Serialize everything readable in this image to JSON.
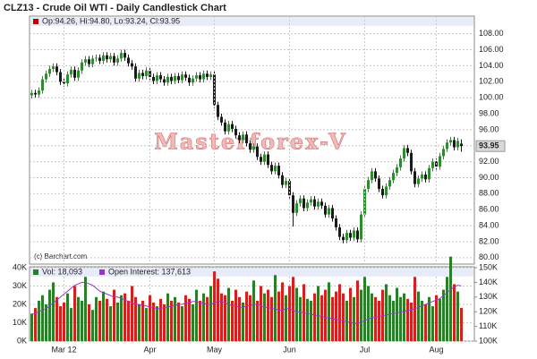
{
  "chart_data": [
    {
      "type": "candlestick",
      "title": "CLZ13 - Crude Oil WTI - Daily Candlestick Chart",
      "legend": "Op:94.26, Hi:94.80, Lo:93.24, Cl:93.95",
      "last_label": "93.95",
      "watermark": "Masterforex-V",
      "credit": "(c) Barchart.com",
      "up_color": "#2e8b2e",
      "down_color": "#1a1a1a",
      "ylim": [
        79.2,
        110.2
      ],
      "yticks": [
        {
          "value": 80,
          "label": "80.00"
        },
        {
          "value": 82,
          "label": "82.00"
        },
        {
          "value": 84,
          "label": "84.00"
        },
        {
          "value": 86,
          "label": "86.00"
        },
        {
          "value": 88,
          "label": "88.00"
        },
        {
          "value": 90,
          "label": "90.00"
        },
        {
          "value": 92,
          "label": "92.00"
        },
        {
          "value": 94,
          "label": "94.00"
        },
        {
          "value": 96,
          "label": "96.00"
        },
        {
          "value": 98,
          "label": "98.00"
        },
        {
          "value": 100,
          "label": "100.00"
        },
        {
          "value": 102,
          "label": "102.00"
        },
        {
          "value": 104,
          "label": "104.00"
        },
        {
          "value": 106,
          "label": "106.00"
        },
        {
          "value": 108,
          "label": "108.00"
        }
      ],
      "grid": true,
      "ohlc": [
        [
          100.3,
          101.0,
          99.9,
          100.6
        ],
        [
          100.6,
          101.0,
          100.0,
          100.4
        ],
        [
          100.4,
          101.3,
          100.0,
          100.9
        ],
        [
          100.9,
          102.7,
          100.5,
          102.3
        ],
        [
          102.3,
          103.4,
          101.9,
          103.0
        ],
        [
          103.0,
          104.0,
          102.6,
          103.6
        ],
        [
          103.6,
          104.3,
          103.2,
          103.9
        ],
        [
          103.9,
          104.3,
          102.8,
          103.2
        ],
        [
          103.2,
          103.6,
          101.6,
          102.0
        ],
        [
          102.0,
          102.4,
          101.4,
          101.8
        ],
        [
          101.8,
          103.3,
          101.4,
          102.9
        ],
        [
          102.9,
          103.9,
          102.5,
          103.5
        ],
        [
          103.5,
          103.9,
          102.1,
          102.5
        ],
        [
          102.5,
          103.8,
          102.1,
          103.4
        ],
        [
          103.4,
          104.8,
          103.0,
          104.4
        ],
        [
          104.4,
          105.2,
          104.0,
          104.8
        ],
        [
          104.8,
          105.2,
          103.8,
          104.2
        ],
        [
          104.2,
          105.3,
          103.8,
          104.9
        ],
        [
          104.9,
          105.4,
          104.5,
          105.0
        ],
        [
          105.0,
          105.4,
          104.2,
          104.6
        ],
        [
          104.6,
          105.7,
          104.2,
          105.3
        ],
        [
          105.3,
          105.7,
          104.4,
          104.8
        ],
        [
          104.8,
          105.6,
          104.4,
          105.2
        ],
        [
          105.2,
          105.6,
          104.0,
          104.4
        ],
        [
          104.4,
          105.3,
          104.0,
          104.9
        ],
        [
          104.9,
          106.0,
          104.5,
          105.6
        ],
        [
          105.6,
          106.0,
          104.6,
          105.0
        ],
        [
          105.0,
          105.4,
          103.9,
          104.3
        ],
        [
          104.3,
          104.7,
          103.5,
          103.9
        ],
        [
          103.9,
          104.3,
          102.0,
          102.4
        ],
        [
          102.4,
          103.5,
          102.0,
          103.1
        ],
        [
          103.1,
          103.5,
          102.3,
          102.7
        ],
        [
          102.7,
          103.8,
          102.3,
          103.4
        ],
        [
          103.4,
          103.8,
          102.2,
          102.6
        ],
        [
          102.6,
          103.0,
          101.7,
          102.1
        ],
        [
          102.1,
          103.2,
          101.7,
          102.8
        ],
        [
          102.8,
          103.2,
          101.9,
          102.3
        ],
        [
          102.3,
          102.7,
          101.5,
          101.9
        ],
        [
          101.9,
          103.0,
          101.5,
          102.6
        ],
        [
          102.6,
          103.0,
          101.7,
          102.1
        ],
        [
          102.1,
          103.1,
          101.7,
          102.7
        ],
        [
          102.7,
          103.1,
          101.8,
          102.2
        ],
        [
          102.2,
          103.3,
          101.8,
          102.9
        ],
        [
          102.9,
          103.3,
          102.1,
          102.5
        ],
        [
          102.5,
          102.9,
          101.5,
          101.9
        ],
        [
          101.9,
          102.8,
          101.5,
          102.4
        ],
        [
          102.4,
          103.2,
          102.0,
          102.8
        ],
        [
          102.8,
          103.2,
          101.9,
          102.3
        ],
        [
          102.3,
          103.4,
          101.9,
          103.0
        ],
        [
          103.0,
          103.4,
          102.2,
          102.6
        ],
        [
          102.6,
          103.3,
          102.2,
          102.9
        ],
        [
          102.9,
          103.3,
          98.7,
          99.1
        ],
        [
          99.1,
          99.5,
          97.2,
          97.6
        ],
        [
          97.6,
          98.0,
          96.5,
          96.9
        ],
        [
          96.9,
          97.3,
          95.4,
          95.8
        ],
        [
          95.8,
          97.1,
          95.4,
          96.7
        ],
        [
          96.7,
          97.1,
          95.7,
          96.1
        ],
        [
          96.1,
          96.5,
          94.9,
          95.3
        ],
        [
          95.3,
          95.7,
          94.3,
          94.7
        ],
        [
          94.7,
          95.8,
          94.3,
          95.4
        ],
        [
          95.4,
          95.8,
          93.9,
          94.3
        ],
        [
          94.3,
          94.7,
          93.1,
          93.5
        ],
        [
          93.5,
          94.3,
          93.1,
          93.9
        ],
        [
          93.9,
          94.3,
          92.2,
          92.6
        ],
        [
          92.6,
          93.0,
          91.6,
          92.0
        ],
        [
          92.0,
          93.3,
          91.6,
          92.9
        ],
        [
          92.9,
          93.3,
          91.2,
          91.6
        ],
        [
          91.6,
          92.0,
          90.4,
          90.8
        ],
        [
          90.8,
          91.9,
          90.4,
          91.5
        ],
        [
          91.5,
          91.9,
          89.9,
          90.3
        ],
        [
          90.3,
          90.7,
          88.7,
          89.1
        ],
        [
          89.1,
          90.0,
          88.7,
          89.6
        ],
        [
          89.6,
          90.0,
          87.4,
          87.8
        ],
        [
          87.8,
          88.2,
          83.9,
          85.6
        ],
        [
          85.6,
          87.2,
          85.2,
          86.8
        ],
        [
          86.8,
          87.8,
          86.4,
          87.4
        ],
        [
          87.4,
          87.8,
          85.8,
          86.2
        ],
        [
          86.2,
          87.3,
          85.8,
          86.9
        ],
        [
          86.9,
          87.7,
          86.5,
          87.3
        ],
        [
          87.3,
          87.7,
          86.0,
          86.4
        ],
        [
          86.4,
          87.4,
          86.0,
          87.0
        ],
        [
          87.0,
          87.4,
          86.1,
          86.5
        ],
        [
          86.5,
          86.9,
          85.0,
          85.4
        ],
        [
          85.4,
          86.6,
          85.0,
          86.2
        ],
        [
          86.2,
          86.6,
          84.5,
          84.9
        ],
        [
          84.9,
          85.3,
          83.4,
          83.8
        ],
        [
          83.8,
          84.2,
          82.2,
          82.6
        ],
        [
          82.6,
          83.0,
          81.8,
          82.2
        ],
        [
          82.2,
          83.5,
          81.8,
          83.1
        ],
        [
          83.1,
          83.5,
          82.1,
          82.5
        ],
        [
          82.5,
          83.8,
          82.1,
          83.4
        ],
        [
          83.4,
          83.8,
          81.9,
          82.3
        ],
        [
          82.3,
          85.8,
          81.9,
          85.4
        ],
        [
          85.4,
          89.0,
          85.0,
          88.6
        ],
        [
          88.6,
          90.1,
          88.2,
          89.7
        ],
        [
          89.7,
          91.2,
          89.3,
          90.8
        ],
        [
          90.8,
          91.2,
          89.5,
          89.9
        ],
        [
          89.9,
          90.3,
          88.2,
          88.6
        ],
        [
          88.6,
          89.0,
          87.4,
          87.8
        ],
        [
          87.8,
          89.3,
          87.4,
          88.9
        ],
        [
          88.9,
          90.1,
          88.5,
          89.7
        ],
        [
          89.7,
          91.0,
          89.3,
          90.6
        ],
        [
          90.6,
          91.7,
          90.2,
          91.3
        ],
        [
          91.3,
          92.8,
          90.9,
          92.4
        ],
        [
          92.4,
          94.1,
          92.0,
          93.7
        ],
        [
          93.7,
          94.1,
          92.7,
          93.1
        ],
        [
          93.1,
          93.5,
          90.4,
          90.8
        ],
        [
          90.8,
          91.2,
          88.8,
          89.2
        ],
        [
          89.2,
          90.3,
          88.8,
          89.9
        ],
        [
          89.9,
          90.8,
          89.5,
          90.4
        ],
        [
          90.4,
          90.8,
          89.4,
          89.8
        ],
        [
          89.8,
          91.6,
          89.4,
          91.2
        ],
        [
          91.2,
          92.4,
          90.8,
          92.0
        ],
        [
          92.0,
          92.4,
          91.0,
          91.4
        ],
        [
          91.4,
          93.1,
          91.0,
          92.7
        ],
        [
          92.7,
          94.0,
          92.3,
          93.6
        ],
        [
          93.6,
          94.8,
          93.2,
          94.4
        ],
        [
          94.4,
          95.1,
          94.0,
          94.7
        ],
        [
          94.7,
          95.1,
          93.4,
          93.8
        ],
        [
          93.8,
          95.0,
          93.4,
          94.6
        ],
        [
          94.26,
          94.8,
          93.24,
          93.95
        ]
      ]
    },
    {
      "type": "volume",
      "categories": [
        null,
        null,
        null,
        null,
        null,
        null,
        null,
        null,
        null,
        "Mar 12",
        null,
        null,
        null,
        null,
        null,
        null,
        null,
        null,
        null,
        null,
        null,
        null,
        null,
        null,
        null,
        null,
        null,
        null,
        null,
        null,
        null,
        null,
        null,
        "Apr",
        null,
        null,
        null,
        null,
        null,
        null,
        null,
        null,
        null,
        null,
        null,
        null,
        null,
        null,
        null,
        null,
        null,
        "May",
        null,
        null,
        null,
        null,
        null,
        null,
        null,
        null,
        null,
        null,
        null,
        null,
        null,
        null,
        null,
        null,
        null,
        null,
        null,
        null,
        "Jun",
        null,
        null,
        null,
        null,
        null,
        null,
        null,
        null,
        null,
        null,
        null,
        null,
        null,
        null,
        null,
        null,
        null,
        null,
        null,
        null,
        "Jul",
        null,
        null,
        null,
        null,
        null,
        null,
        null,
        null,
        null,
        null,
        null,
        null,
        null,
        null,
        null,
        null,
        null,
        null,
        null,
        "Aug",
        null,
        null,
        null,
        null,
        null,
        null,
        null
      ],
      "ylim": [
        0,
        40000
      ],
      "yticks": [
        {
          "value": 0,
          "label": "0K"
        },
        {
          "value": 10000,
          "label": "10K"
        },
        {
          "value": 20000,
          "label": "20K"
        },
        {
          "value": 30000,
          "label": "30K"
        },
        {
          "value": 40000,
          "label": "40K"
        }
      ],
      "y2lim": [
        100000,
        150000
      ],
      "y2ticks": [
        {
          "value": 100000,
          "label": "100K"
        },
        {
          "value": 110000,
          "label": "110K"
        },
        {
          "value": 120000,
          "label": "120K"
        },
        {
          "value": 130000,
          "label": "130K"
        },
        {
          "value": 140000,
          "label": "140K"
        },
        {
          "value": 150000,
          "label": "150K"
        }
      ],
      "up_color": "#2a7f2a",
      "down_color": "#d62020",
      "series": [
        {
          "name": "Vol: 18,093",
          "color": "#2a7f2a",
          "values": [
            15000,
            18000,
            22000,
            25000,
            20000,
            28000,
            32000,
            24000,
            19000,
            21000,
            26000,
            18000,
            30000,
            24000,
            22000,
            35000,
            20000,
            17000,
            24000,
            22000,
            27000,
            23000,
            19000,
            28000,
            21000,
            25000,
            26000,
            22000,
            30000,
            24000,
            20000,
            22000,
            18000,
            25000,
            21000,
            19000,
            23000,
            20000,
            26000,
            22000,
            24000,
            21000,
            19000,
            25000,
            23000,
            20000,
            28000,
            22000,
            26000,
            24000,
            30000,
            38000,
            34000,
            26000,
            25000,
            29000,
            22000,
            28000,
            24000,
            21000,
            27000,
            25000,
            33000,
            22000,
            30000,
            26000,
            28000,
            24000,
            36000,
            27000,
            32000,
            25000,
            30000,
            35000,
            29000,
            24000,
            31000,
            23000,
            22000,
            26000,
            30000,
            25000,
            28000,
            32000,
            24000,
            27000,
            31000,
            26000,
            22000,
            29000,
            24000,
            33000,
            28000,
            35000,
            30000,
            26000,
            24000,
            22000,
            28000,
            31000,
            25000,
            22000,
            29000,
            24000,
            26000,
            23000,
            21000,
            35000,
            27000,
            22000,
            20000,
            24000,
            19000,
            25000,
            23000,
            28000,
            35000,
            46000,
            31000,
            27000,
            18093
          ]
        },
        {
          "name": "Open Interest: 137,613",
          "color": "#9933cc",
          "axis": "y2",
          "values": [
            118000,
            119000,
            120000,
            121000,
            122000,
            124000,
            126000,
            128000,
            130000,
            132000,
            134000,
            136000,
            138000,
            139000,
            140000,
            140000,
            139000,
            138000,
            136000,
            134000,
            133000,
            132000,
            131000,
            130000,
            130000,
            129000,
            128000,
            127000,
            126000,
            125000,
            125000,
            124000,
            124000,
            123000,
            123000,
            122000,
            122000,
            123000,
            123000,
            124000,
            124000,
            125000,
            125000,
            126000,
            126000,
            127000,
            127000,
            126000,
            126000,
            125000,
            125000,
            126000,
            127000,
            127000,
            126000,
            125000,
            124000,
            124000,
            123000,
            123000,
            124000,
            124000,
            125000,
            125000,
            124000,
            123000,
            123000,
            122000,
            122000,
            121000,
            121000,
            122000,
            122000,
            121000,
            120000,
            120000,
            119000,
            119000,
            118000,
            118000,
            117000,
            117000,
            116000,
            116000,
            115000,
            115000,
            114000,
            114000,
            113000,
            113000,
            112000,
            112000,
            113000,
            114000,
            115000,
            116000,
            116000,
            117000,
            117000,
            118000,
            118000,
            119000,
            119000,
            120000,
            120000,
            121000,
            121000,
            122000,
            123000,
            124000,
            125000,
            126000,
            127000,
            128000,
            129000,
            131000,
            133000,
            135000,
            137000,
            138000,
            137613
          ]
        }
      ]
    }
  ]
}
